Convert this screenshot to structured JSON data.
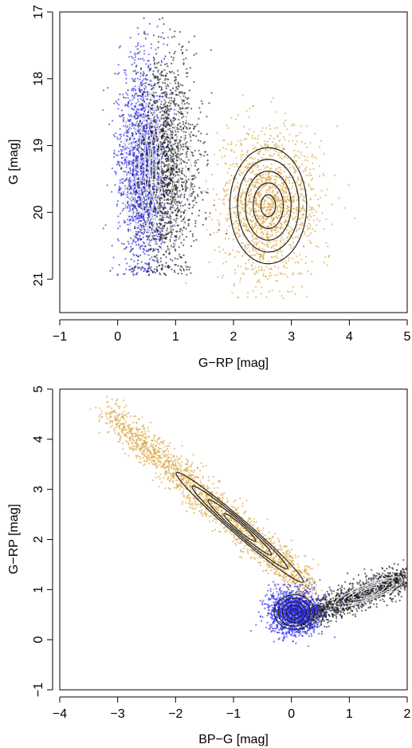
{
  "colors": {
    "blue": "#2b2bf0",
    "black": "#1a1a1a",
    "gold": "#d9a53c",
    "contour_dark": "#222222",
    "contour_light": "#e8e8f2"
  },
  "chart_data": [
    {
      "type": "scatter",
      "xlabel": "G−RP [mag]",
      "ylabel": "G [mag]",
      "xlim": [
        -1,
        5
      ],
      "ylim": [
        21.5,
        17
      ],
      "y_inverted": true,
      "xticks": [
        -1,
        0,
        1,
        2,
        3,
        4,
        5
      ],
      "xtick_labels": [
        "−1",
        "0",
        "1",
        "2",
        "3",
        "4",
        "5"
      ],
      "yticks": [
        17,
        18,
        19,
        20,
        21
      ],
      "ytick_labels": [
        "17",
        "18",
        "19",
        "20",
        "21"
      ],
      "grid": false,
      "series": [
        {
          "color": "#2b2bf0",
          "contour_color": "#e8e8f2",
          "clusters": [
            {
              "cx": 0.42,
              "cy": 19.3,
              "sx": 0.2,
              "sy": 0.75,
              "n": 1700,
              "ymin": 17.0,
              "ymax": 20.95
            }
          ]
        },
        {
          "color": "#1a1a1a",
          "contour_color": "#e8e8f2",
          "clusters": [
            {
              "cx": 0.82,
              "cy": 19.3,
              "sx": 0.28,
              "sy": 0.8,
              "n": 1900,
              "ymin": 17.0,
              "ymax": 20.95
            }
          ]
        },
        {
          "color": "#d9a53c",
          "contour_color": "#222222",
          "clusters": [
            {
              "cx": 2.6,
              "cy": 19.9,
              "sx": 0.42,
              "sy": 0.55,
              "n": 1500,
              "ymin": 17.3,
              "ymax": 21.3
            }
          ]
        }
      ]
    },
    {
      "type": "scatter",
      "xlabel": "BP−G [mag]",
      "ylabel": "G−RP [mag]",
      "xlim": [
        -4,
        2
      ],
      "ylim": [
        -1,
        5
      ],
      "xticks": [
        -4,
        -3,
        -2,
        -1,
        0,
        1,
        2
      ],
      "xtick_labels": [
        "−4",
        "−3",
        "−2",
        "−1",
        "0",
        "1",
        "2"
      ],
      "yticks": [
        -1,
        0,
        1,
        2,
        3,
        4,
        5
      ],
      "ytick_labels": [
        "−1",
        "0",
        "1",
        "2",
        "3",
        "4",
        "5"
      ],
      "grid": false,
      "series": [
        {
          "color": "#d9a53c",
          "contour_color": "#222222",
          "band": {
            "x0": -3.2,
            "y0": 4.55,
            "x1": 0.35,
            "y1": 1.0,
            "width": 0.18,
            "n": 1800
          }
        },
        {
          "color": "#1a1a1a",
          "contour_color": "#e8e8f2",
          "band": {
            "x0": 0.1,
            "y0": 0.4,
            "x1": 2.0,
            "y1": 1.25,
            "width": 0.14,
            "n": 1500
          }
        },
        {
          "color": "#2b2bf0",
          "contour_color": "#222222",
          "clusters": [
            {
              "cx": 0.05,
              "cy": 0.55,
              "sx": 0.22,
              "sy": 0.22,
              "n": 1400
            }
          ]
        }
      ]
    }
  ]
}
